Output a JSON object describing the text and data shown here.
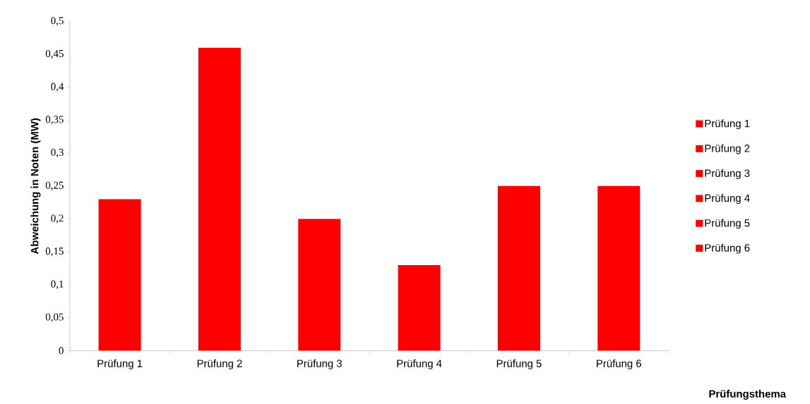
{
  "chart_data": {
    "type": "bar",
    "categories": [
      "Prüfung 1",
      "Prüfung 2",
      "Prüfung 3",
      "Prüfung 4",
      "Prüfung 5",
      "Prüfung 6"
    ],
    "series": [
      {
        "name": "Prüfung 1",
        "color": "#ff0000",
        "values": [
          0.23,
          null,
          null,
          null,
          null,
          null
        ]
      },
      {
        "name": "Prüfung 2",
        "color": "#ff0000",
        "values": [
          null,
          0.46,
          null,
          null,
          null,
          null
        ]
      },
      {
        "name": "Prüfung 3",
        "color": "#ff0000",
        "values": [
          null,
          null,
          0.2,
          null,
          null,
          null
        ]
      },
      {
        "name": "Prüfung 4",
        "color": "#ff0000",
        "values": [
          null,
          null,
          null,
          0.13,
          null,
          null
        ]
      },
      {
        "name": "Prüfung 5",
        "color": "#ff0000",
        "values": [
          null,
          null,
          null,
          null,
          0.25,
          null
        ]
      },
      {
        "name": "Prüfung 6",
        "color": "#ff0000",
        "values": [
          null,
          null,
          null,
          null,
          null,
          0.25
        ]
      }
    ],
    "ylabel": "Abweichung in Noten (MW)",
    "xlabel": "Prüfungsthema",
    "ylim": [
      0,
      0.5
    ],
    "yticks": [
      0,
      {
        "value": 0.05,
        "label": "0,05"
      },
      {
        "value": 0.1,
        "label": "0,1"
      },
      {
        "value": 0.15,
        "label": "0,15"
      },
      {
        "value": 0.2,
        "label": "0,2"
      },
      {
        "value": 0.25,
        "label": "0,25"
      },
      {
        "value": 0.3,
        "label": "0,3"
      },
      {
        "value": 0.35,
        "label": "0,35"
      },
      {
        "value": 0.4,
        "label": "0,4"
      },
      {
        "value": 0.45,
        "label": "0,45"
      },
      {
        "value": 0.5,
        "label": "0,5"
      }
    ],
    "legend": "right",
    "grid": false
  }
}
